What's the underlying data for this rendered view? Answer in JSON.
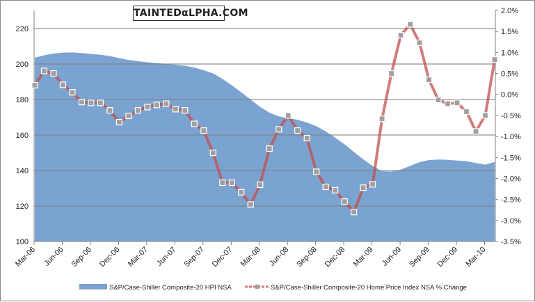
{
  "logo_text": "TAINTEDαLPHA.COM",
  "chart_data": {
    "type": "area+line",
    "title": "",
    "months": [
      "Mar-06",
      "Apr-06",
      "May-06",
      "Jun-06",
      "Jul-06",
      "Aug-06",
      "Sep-06",
      "Oct-06",
      "Nov-06",
      "Dec-06",
      "Jan-07",
      "Feb-07",
      "Mar-07",
      "Apr-07",
      "May-07",
      "Jun-07",
      "Jul-07",
      "Aug-07",
      "Sep-07",
      "Oct-07",
      "Nov-07",
      "Dec-07",
      "Jan-08",
      "Feb-08",
      "Mar-08",
      "Apr-08",
      "May-08",
      "Jun-08",
      "Jul-08",
      "Aug-08",
      "Sep-08",
      "Oct-08",
      "Nov-08",
      "Dec-08",
      "Jan-09",
      "Feb-09",
      "Mar-09",
      "Apr-09",
      "May-09",
      "Jun-09",
      "Jul-09",
      "Aug-09",
      "Sep-09",
      "Oct-09",
      "Nov-09",
      "Dec-09",
      "Jan-10",
      "Feb-10",
      "Mar-10",
      "Apr-10"
    ],
    "x_tick_labels": [
      "Mar-06",
      "Jun-06",
      "Sep-06",
      "Dec-06",
      "Mar-07",
      "Jun-07",
      "Sep-07",
      "Dec-07",
      "Mar-08",
      "Jun-08",
      "Sep-08",
      "Dec-08",
      "Mar-09",
      "Jun-09",
      "Sep-09",
      "Dec-09",
      "Mar-10"
    ],
    "left_axis": {
      "ylim": [
        100,
        220
      ],
      "ticks": [
        "100",
        "120",
        "140",
        "160",
        "180",
        "200",
        "220"
      ],
      "tick_values": [
        100,
        120,
        140,
        160,
        180,
        200,
        220
      ]
    },
    "right_axis": {
      "ylim": [
        -3.5,
        2.0
      ],
      "ticks": [
        "-3.5%",
        "-3.0%",
        "-2.5%",
        "-2.0%",
        "-1.5%",
        "-1.0%",
        "-0.5%",
        "0.0%",
        "0.5%",
        "1.0%",
        "1.5%",
        "2.0%"
      ],
      "tick_values": [
        -3.5,
        -3.0,
        -2.5,
        -2.0,
        -1.5,
        -1.0,
        -0.5,
        0.0,
        0.5,
        1.0,
        1.5,
        2.0
      ]
    },
    "grid": true,
    "legend_position": "bottom",
    "series": [
      {
        "name": "S&P/Case-Shiller Composite-20 HPI NSA",
        "type": "area",
        "axis": "left",
        "color": "#7ba3d2",
        "values": [
          203.6,
          204.9,
          205.9,
          206.4,
          206.5,
          206.2,
          205.7,
          205.2,
          204.5,
          203.3,
          202.3,
          201.6,
          201.0,
          200.5,
          200.1,
          199.6,
          199.0,
          198.0,
          196.5,
          194.7,
          191.6,
          188.0,
          184.0,
          180.0,
          175.9,
          172.6,
          170.5,
          169.5,
          168.6,
          167.0,
          165.0,
          162.0,
          158.5,
          154.8,
          150.5,
          146.3,
          142.5,
          139.6,
          139.4,
          140.5,
          142.6,
          144.7,
          145.9,
          146.2,
          146.0,
          145.6,
          145.2,
          144.2,
          143.3,
          144.8
        ]
      },
      {
        "name": "S&P/Case-Shiller Composite-20 Home Price Index NSA % Change",
        "type": "line",
        "axis": "right",
        "color": "#c0504d",
        "values": [
          0.22,
          0.56,
          0.5,
          0.23,
          0.05,
          -0.18,
          -0.2,
          -0.2,
          -0.38,
          -0.66,
          -0.51,
          -0.38,
          -0.3,
          -0.25,
          -0.22,
          -0.35,
          -0.38,
          -0.7,
          -0.86,
          -1.39,
          -2.1,
          -2.1,
          -2.33,
          -2.62,
          -2.15,
          -1.29,
          -0.83,
          -0.5,
          -0.86,
          -1.04,
          -1.84,
          -2.2,
          -2.28,
          -2.55,
          -2.8,
          -2.22,
          -2.14,
          -0.58,
          0.5,
          1.41,
          1.67,
          1.23,
          0.35,
          -0.13,
          -0.22,
          -0.2,
          -0.41,
          -0.88,
          -0.5,
          0.83
        ]
      }
    ]
  }
}
